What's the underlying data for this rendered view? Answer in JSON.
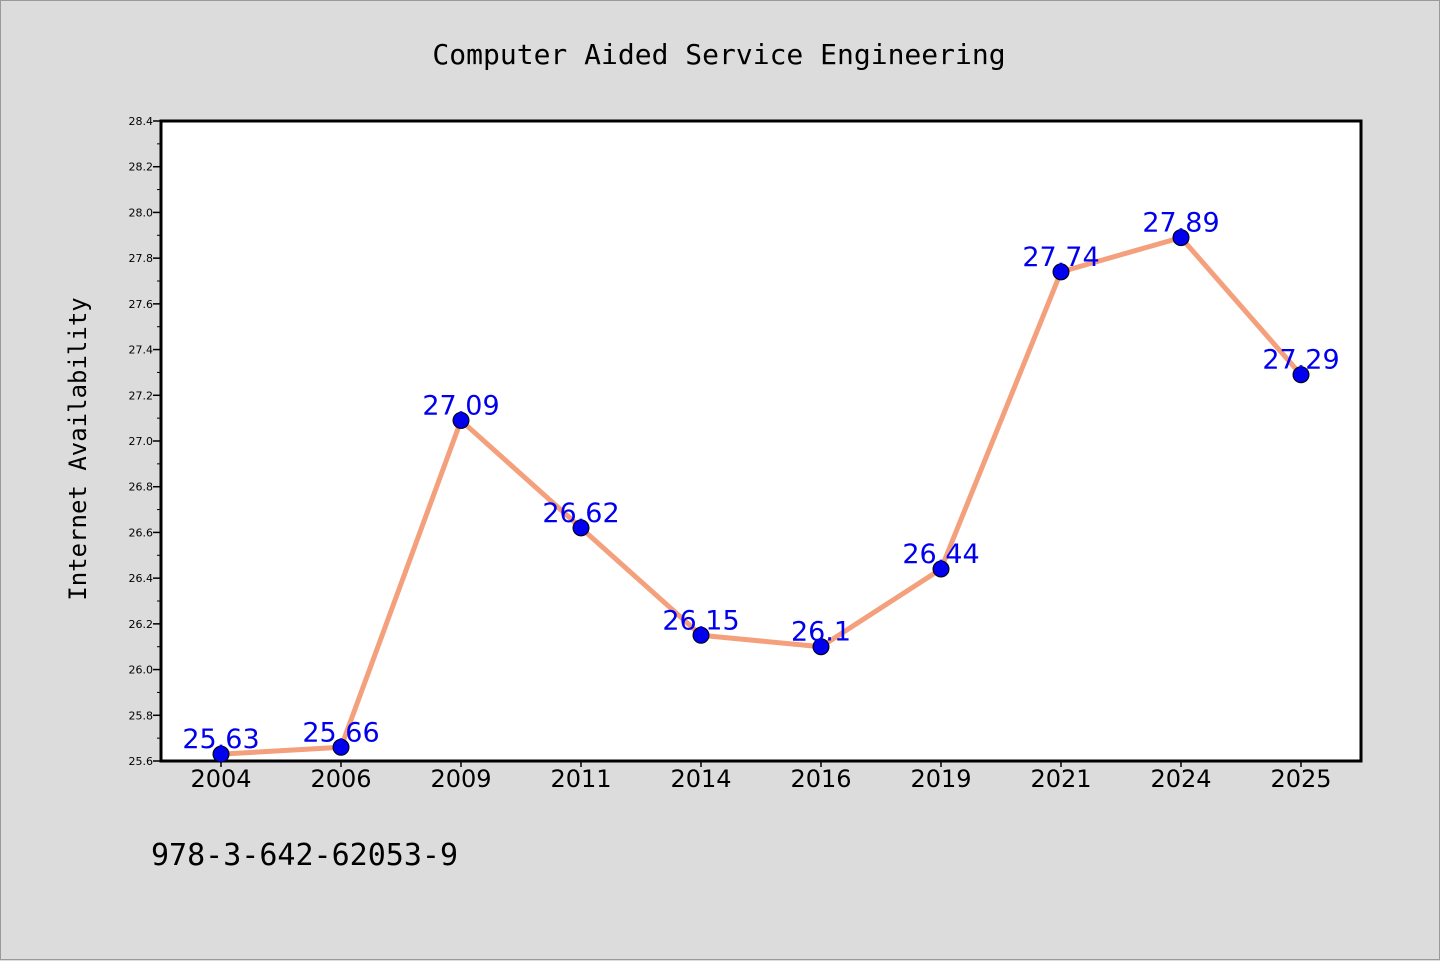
{
  "chart_data": {
    "type": "line",
    "title": "Computer Aided Service Engineering",
    "xlabel": "",
    "ylabel": "Internet Availability",
    "categories": [
      "2004",
      "2006",
      "2009",
      "2011",
      "2014",
      "2016",
      "2019",
      "2021",
      "2024",
      "2025"
    ],
    "series": [
      {
        "values": [
          25.63,
          25.66,
          27.09,
          26.62,
          26.15,
          26.1,
          26.44,
          27.74,
          27.89,
          27.29
        ],
        "data_labels": [
          "25.63",
          "25.66",
          "27.09",
          "26.62",
          "26.15",
          "26.1",
          "26.44",
          "27.74",
          "27.89",
          "27.29"
        ],
        "line_color": "#f4a07c",
        "marker_color": "#0000ee",
        "label_color": "#0000ee"
      }
    ],
    "ylim": [
      25.6,
      28.4
    ],
    "yticks": [
      25.6,
      25.8,
      26.0,
      26.2,
      26.4,
      26.6,
      26.8,
      27.0,
      27.2,
      27.4,
      27.6,
      27.8,
      28.0,
      28.2,
      28.4
    ],
    "ytick_labels": [
      "25.6",
      "25.8",
      "26.0",
      "26.2",
      "26.4",
      "26.6",
      "26.8",
      "27.0",
      "27.2",
      "27.4",
      "27.6",
      "27.8",
      "28.0",
      "28.2",
      "28.4"
    ],
    "grid": false,
    "legend": "none"
  },
  "footer_text": "978-3-642-62053-9",
  "colors": {
    "background": "#dcdcdc",
    "plot_background": "#ffffff",
    "axis": "#000000"
  }
}
